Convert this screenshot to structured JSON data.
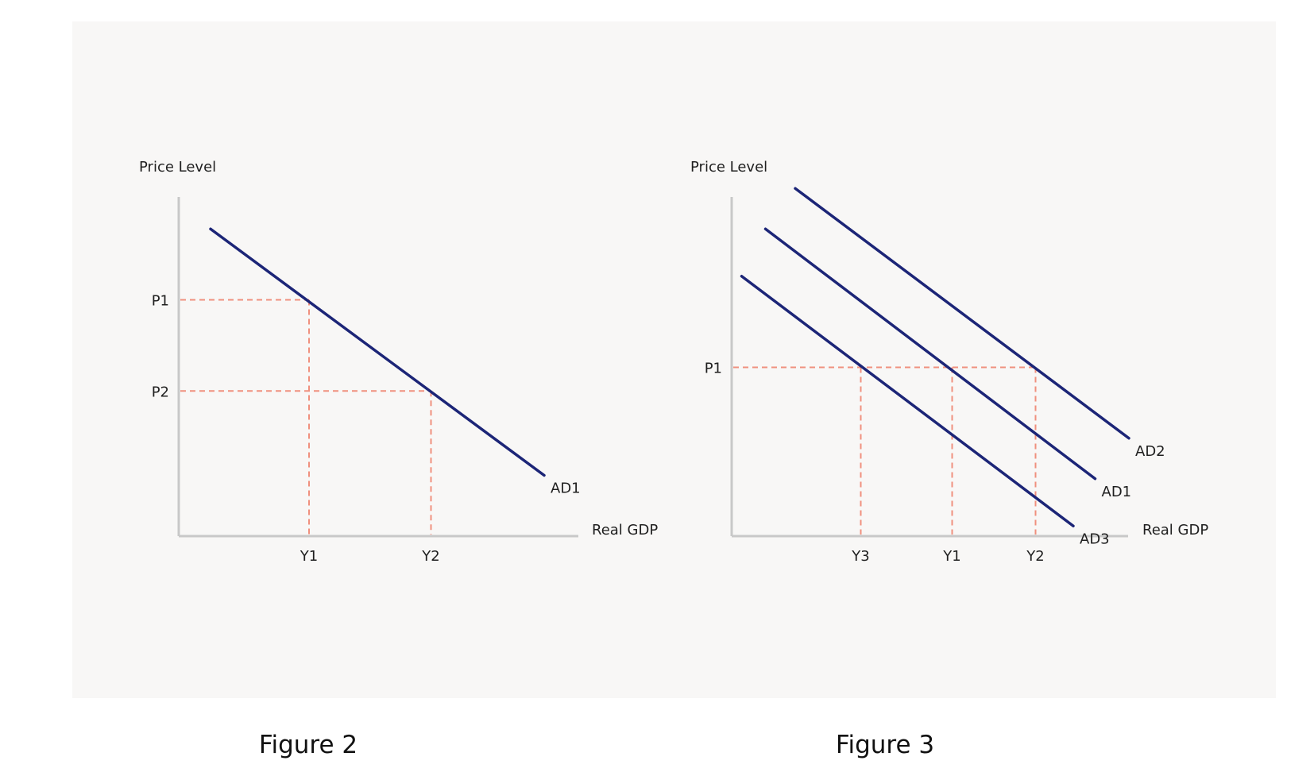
{
  "colors": {
    "panel_background": "#f8f7f6",
    "axis": "#c8c8c8",
    "curve": "#1c2577",
    "guide": "#f0907e",
    "text": "#1f1f1f"
  },
  "chart_data": [
    {
      "type": "line",
      "caption": "Figure 2",
      "ylabel": "Price Level",
      "xlabel": "Real GDP",
      "xlim": [
        0,
        10
      ],
      "ylim": [
        0,
        10
      ],
      "grid": false,
      "legend": "none",
      "series": [
        {
          "name": "AD1",
          "x": [
            0.8,
            9.2
          ],
          "y": [
            9.1,
            1.8
          ]
        }
      ],
      "x_ticks": [
        {
          "label": "Y1",
          "value": 3.28
        },
        {
          "label": "Y2",
          "value": 6.35
        }
      ],
      "y_ticks": [
        {
          "label": "P1",
          "value": 7.0
        },
        {
          "label": "P2",
          "value": 4.3
        }
      ],
      "guides": [
        {
          "from_tick_x": 0,
          "from_tick_y": 0
        },
        {
          "from_tick_x": 1,
          "from_tick_y": 1
        }
      ]
    },
    {
      "type": "line",
      "caption": "Figure 3",
      "ylabel": "Price Level",
      "xlabel": "Real GDP",
      "xlim": [
        0,
        10
      ],
      "ylim": [
        0,
        10
      ],
      "grid": false,
      "legend": "none",
      "series": [
        {
          "name": "AD2",
          "x": [
            1.6,
            10.0
          ],
          "y": [
            10.3,
            2.9
          ]
        },
        {
          "name": "AD1",
          "x": [
            0.85,
            9.15
          ],
          "y": [
            9.1,
            1.7
          ]
        },
        {
          "name": "AD3",
          "x": [
            0.25,
            8.6
          ],
          "y": [
            7.7,
            0.3
          ]
        }
      ],
      "x_ticks": [
        {
          "label": "Y3",
          "value": 3.25
        },
        {
          "label": "Y1",
          "value": 5.55
        },
        {
          "label": "Y2",
          "value": 7.65
        }
      ],
      "y_ticks": [
        {
          "label": "P1",
          "value": 5.0
        }
      ],
      "guides": [
        {
          "from_tick_x": 0,
          "from_tick_y": 0
        },
        {
          "from_tick_x": 1,
          "from_tick_y": 0
        },
        {
          "from_tick_x": 2,
          "from_tick_y": 0
        }
      ]
    }
  ]
}
